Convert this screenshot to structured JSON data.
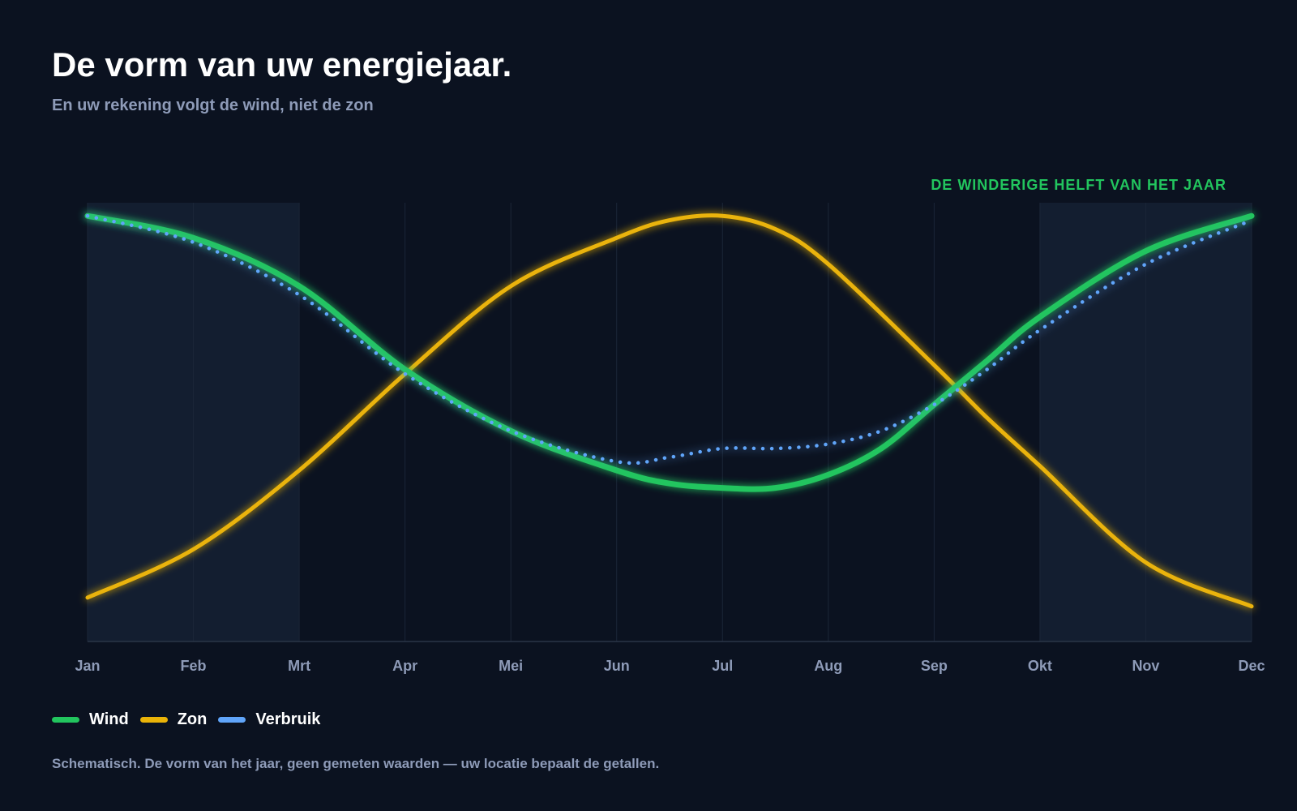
{
  "header": {
    "title": "De vorm van uw energiejaar.",
    "subtitle": "En uw rekening volgt de wind, niet de zon"
  },
  "footnote": "Schematisch. De vorm van het jaar, geen gemeten waarden — uw locatie bepaalt de getallen.",
  "chart_data": {
    "type": "line",
    "title": "De vorm van uw energiejaar.",
    "subtitle": "En uw rekening volgt de wind, niet de zon",
    "categories": [
      "Jan",
      "Feb",
      "Mrt",
      "Apr",
      "Mei",
      "Jun",
      "Jul",
      "Aug",
      "Sep",
      "Okt",
      "Nov",
      "Dec"
    ],
    "ylim": [
      0,
      100
    ],
    "grid": "vertical",
    "legend_position": "bottom-left",
    "annotation": {
      "text": "DE WINDERIGE HELFT VAN HET JAAR",
      "shaded_ranges": [
        [
          "Jan",
          "Mrt"
        ],
        [
          "Okt",
          "Dec"
        ]
      ]
    },
    "series": [
      {
        "name": "Wind",
        "color": "#22c55e",
        "style": "solid",
        "x": [
          0,
          1,
          2,
          3,
          4,
          5,
          5.5,
          6,
          6.5,
          7,
          7.5,
          8,
          8.5,
          9,
          10,
          11
        ],
        "values": [
          97,
          92,
          81,
          62,
          48,
          39,
          36,
          35,
          35,
          38,
          44,
          54,
          64,
          74,
          89,
          97
        ]
      },
      {
        "name": "Zon",
        "color": "#eab308",
        "style": "solid",
        "x": [
          0,
          1,
          2,
          3,
          4,
          5,
          5.5,
          6,
          6.5,
          7,
          8,
          8.5,
          9,
          10,
          11
        ],
        "values": [
          10,
          21,
          39,
          61,
          81,
          92,
          96,
          97,
          94,
          86,
          63,
          51,
          40,
          18,
          8
        ]
      },
      {
        "name": "Verbruik",
        "color": "#60a5fa",
        "style": "dotted",
        "x": [
          0,
          1,
          2,
          3,
          4,
          5,
          5.5,
          6,
          6.5,
          7,
          7.5,
          8,
          8.5,
          9,
          10,
          11
        ],
        "values": [
          97,
          91,
          79,
          61,
          48,
          41,
          42,
          44,
          44,
          45,
          48,
          54,
          62,
          71,
          86,
          96
        ]
      }
    ]
  }
}
